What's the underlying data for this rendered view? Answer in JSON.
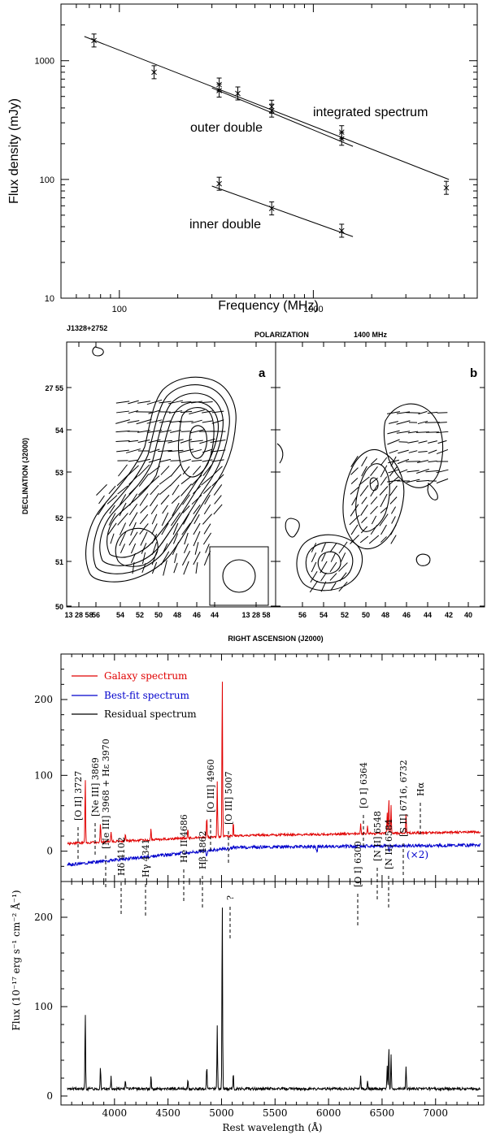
{
  "chart_data": [
    {
      "type": "scatter",
      "xlabel": "Frequency (MHz)",
      "ylabel": "Flux density (mJy)",
      "xscale": "log",
      "yscale": "log",
      "xlim": [
        50,
        7000
      ],
      "ylim": [
        10,
        3000
      ],
      "x_tick_labels": [
        "100",
        "1000"
      ],
      "y_tick_labels": [
        "10",
        "100",
        "1000"
      ],
      "series": [
        {
          "name": "integrated spectrum",
          "points": [
            [
              74,
              1480
            ],
            [
              151,
              800
            ],
            [
              327,
              630
            ],
            [
              408,
              530
            ],
            [
              610,
              410
            ],
            [
              1400,
              250
            ],
            [
              4850,
              85
            ]
          ],
          "fit": [
            [
              66,
              1600
            ],
            [
              5000,
              100
            ]
          ]
        },
        {
          "name": "outer double",
          "points": [
            [
              327,
              560
            ],
            [
              610,
              380
            ],
            [
              1400,
              220
            ]
          ],
          "fit": [
            [
              300,
              590
            ],
            [
              1600,
              190
            ]
          ]
        },
        {
          "name": "inner double",
          "points": [
            [
              327,
              92
            ],
            [
              610,
              57
            ],
            [
              1400,
              37
            ]
          ],
          "fit": [
            [
              300,
              88
            ],
            [
              1600,
              33
            ]
          ]
        }
      ]
    },
    {
      "type": "contour",
      "title_left": "J1328+2752",
      "title_center": "POLARIZATION",
      "title_right": "1400 MHz",
      "panels": [
        "a",
        "b"
      ],
      "ylabel": "DECLINATION (J2000)",
      "xlabel": "RIGHT ASCENSION (J2000)",
      "dec_tick_labels": [
        "27 55",
        "54",
        "53",
        "52",
        "51",
        "50"
      ],
      "ra_tick_labels_a": [
        "13 28 58",
        "56",
        "54",
        "52",
        "50",
        "48",
        "46",
        "44",
        "13 28 58"
      ],
      "ra_tick_labels_b": [
        "56",
        "54",
        "52",
        "50",
        "48",
        "46",
        "44",
        "42",
        "40"
      ]
    },
    {
      "type": "line",
      "xlabel": "Rest wavelength (Å)",
      "ylabel": "Flux (10⁻¹⁷ erg s⁻¹ cm⁻² Å⁻¹)",
      "xlim": [
        3500,
        7450
      ],
      "x_tick_labels": [
        "4000",
        "4500",
        "5000",
        "5500",
        "6000",
        "6500",
        "7000"
      ],
      "top_ylim": [
        -40,
        260
      ],
      "top_y_tick_labels": [
        "0",
        "100",
        "200"
      ],
      "bottom_ylim": [
        -10,
        240
      ],
      "bottom_y_tick_labels": [
        "0",
        "100",
        "200"
      ],
      "legend": [
        {
          "label": "Galaxy spectrum",
          "color": "#e00000"
        },
        {
          "label": "Best-fit spectrum",
          "color": "#0000cc"
        },
        {
          "label": "Residual spectrum",
          "color": "#000000"
        }
      ],
      "note": "(×2)",
      "emission_lines": [
        {
          "label": "[O II] 3727",
          "wl": 3727,
          "peak": 88
        },
        {
          "label": "[Ne III] 3869",
          "wl": 3869,
          "peak": 26
        },
        {
          "label": "[Ne III] 3968 + Hε 3970",
          "wl": 3968,
          "peak": 14
        },
        {
          "label": "Hδ 4102",
          "wl": 4102,
          "peak": 10
        },
        {
          "label": "Hγ 4341",
          "wl": 4341,
          "peak": 14
        },
        {
          "label": "He II 4686",
          "wl": 4686,
          "peak": 12
        },
        {
          "label": "Hβ 4862",
          "wl": 4862,
          "peak": 26
        },
        {
          "label": "[O III] 4960",
          "wl": 4960,
          "peak": 72
        },
        {
          "label": "[O III] 5007",
          "wl": 5007,
          "peak": 215
        },
        {
          "label": "?",
          "wl": 5110,
          "peak": 18
        },
        {
          "label": "[O I] 6300",
          "wl": 6300,
          "peak": 14
        },
        {
          "label": "[O I] 6364",
          "wl": 6364,
          "peak": 10
        },
        {
          "label": "[N II] 6548",
          "wl": 6548,
          "peak": 26
        },
        {
          "label": "Hα",
          "wl": 6563,
          "peak": 46
        },
        {
          "label": "[N II] 6584",
          "wl": 6584,
          "peak": 38
        },
        {
          "label": "[S II] 6716, 6732",
          "wl": 6724,
          "peak": 26
        }
      ]
    }
  ]
}
